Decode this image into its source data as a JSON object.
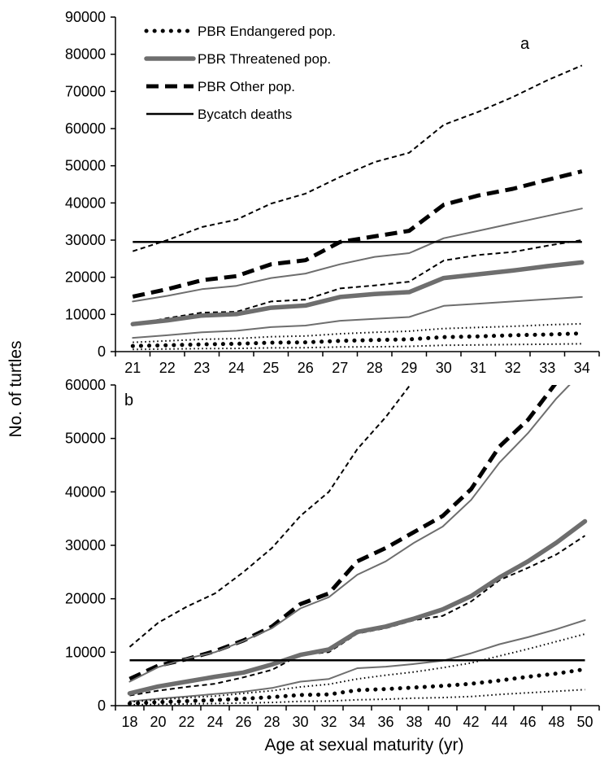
{
  "chart_data": [
    {
      "type": "line",
      "panel_label": "a",
      "x": [
        21,
        22,
        23,
        24,
        25,
        26,
        27,
        28,
        29,
        30,
        31,
        32,
        33,
        34
      ],
      "xlim": [
        21,
        34
      ],
      "ylim": [
        0,
        90000
      ],
      "yticks": [
        0,
        10000,
        20000,
        30000,
        40000,
        50000,
        60000,
        70000,
        80000,
        90000
      ],
      "ytick_labels": [
        "0",
        "10000",
        "20000",
        "30000",
        "40000",
        "50000",
        "60000",
        "70000",
        "80000",
        "90000"
      ],
      "xtick_labels": [
        "21",
        "22",
        "23",
        "24",
        "25",
        "26",
        "27",
        "28",
        "29",
        "30",
        "31",
        "32",
        "33",
        "34"
      ],
      "legend": {
        "placement": "top-left",
        "entries": [
          {
            "label": "PBR Endangered pop.",
            "style": "dotted-thick",
            "color": "#000000"
          },
          {
            "label": "PBR Threatened pop.",
            "style": "solid-thick",
            "color": "#6e6e6e"
          },
          {
            "label": "PBR Other pop.",
            "style": "dashed-thick",
            "color": "#000000"
          },
          {
            "label": "Bycatch deaths",
            "style": "solid",
            "color": "#000000"
          }
        ]
      },
      "series": [
        {
          "group": "PBR Other pop.",
          "role": "upper",
          "style": "dashed-thin",
          "color": "#000000",
          "values": [
            27000,
            30000,
            33500,
            35500,
            39800,
            42500,
            47000,
            51000,
            53500,
            61000,
            64500,
            68500,
            73000,
            77000
          ]
        },
        {
          "group": "PBR Other pop.",
          "role": "mean",
          "style": "dashed-thick",
          "color": "#000000",
          "values": [
            14800,
            16800,
            19200,
            20300,
            23500,
            24600,
            29500,
            31000,
            32500,
            39500,
            42000,
            43800,
            46200,
            48500
          ]
        },
        {
          "group": "PBR Other pop.",
          "role": "lower",
          "style": "dashed-thin",
          "color": "#000000",
          "values": [
            7200,
            9000,
            10500,
            10700,
            13500,
            14000,
            17000,
            17800,
            18800,
            24500,
            26000,
            26800,
            28500,
            30000
          ]
        },
        {
          "group": "PBR Threatened pop.",
          "role": "upper",
          "style": "solid-thin",
          "color": "#6e6e6e",
          "values": [
            13500,
            15000,
            16800,
            17700,
            19800,
            21000,
            23500,
            25500,
            26500,
            30500,
            32500,
            34500,
            36500,
            38500
          ]
        },
        {
          "group": "PBR Threatened pop.",
          "role": "mean",
          "style": "solid-thick",
          "color": "#6e6e6e",
          "values": [
            7400,
            8400,
            9700,
            10100,
            11800,
            12400,
            14700,
            15500,
            16000,
            19800,
            20800,
            21800,
            23000,
            24000
          ]
        },
        {
          "group": "PBR Threatened pop.",
          "role": "lower",
          "style": "solid-thin",
          "color": "#6e6e6e",
          "values": [
            3700,
            4400,
            5200,
            5600,
            6600,
            7000,
            8300,
            8800,
            9300,
            12300,
            12900,
            13500,
            14100,
            14700
          ]
        },
        {
          "group": "PBR Endangered pop.",
          "role": "upper",
          "style": "dotted-thin",
          "color": "#000000",
          "values": [
            2500,
            2900,
            3300,
            3500,
            4000,
            4200,
            4800,
            5200,
            5500,
            6200,
            6500,
            6800,
            7200,
            7500
          ]
        },
        {
          "group": "PBR Endangered pop.",
          "role": "mean",
          "style": "dotted-thick",
          "color": "#000000",
          "values": [
            1500,
            1700,
            1950,
            2100,
            2400,
            2500,
            2900,
            3100,
            3300,
            3900,
            4100,
            4400,
            4600,
            4900
          ]
        },
        {
          "group": "PBR Endangered pop.",
          "role": "lower",
          "style": "dotted-thin",
          "color": "#000000",
          "values": [
            600,
            700,
            800,
            850,
            1000,
            1050,
            1250,
            1300,
            1400,
            1700,
            1800,
            1900,
            2000,
            2100
          ]
        },
        {
          "group": "Bycatch deaths",
          "role": "value",
          "style": "solid",
          "color": "#000000",
          "values": [
            29500,
            29500,
            29500,
            29500,
            29500,
            29500,
            29500,
            29500,
            29500,
            29500,
            29500,
            29500,
            29500,
            29500
          ]
        }
      ]
    },
    {
      "type": "line",
      "panel_label": "b",
      "x": [
        18,
        20,
        22,
        24,
        26,
        28,
        30,
        32,
        34,
        36,
        38,
        40,
        42,
        44,
        46,
        48,
        50
      ],
      "xlim": [
        18,
        50
      ],
      "ylim": [
        0,
        60000
      ],
      "yticks": [
        0,
        10000,
        20000,
        30000,
        40000,
        50000,
        60000
      ],
      "ytick_labels": [
        "0",
        "10000",
        "20000",
        "30000",
        "40000",
        "50000",
        "60000"
      ],
      "xtick_labels": [
        "18",
        "20",
        "22",
        "24",
        "26",
        "28",
        "30",
        "32",
        "34",
        "36",
        "38",
        "40",
        "42",
        "44",
        "46",
        "48",
        "50"
      ],
      "series": [
        {
          "group": "PBR Other pop.",
          "role": "upper",
          "style": "dashed-thin",
          "color": "#000000",
          "values": [
            11000,
            15500,
            18500,
            21000,
            25000,
            29500,
            35500,
            40000,
            48000,
            54000,
            61000,
            null,
            null,
            null,
            null,
            null,
            null
          ]
        },
        {
          "group": "PBR Other pop.",
          "role": "mean",
          "style": "dashed-thick",
          "color": "#000000",
          "values": [
            5000,
            7500,
            8700,
            10200,
            12200,
            14800,
            19000,
            21000,
            27000,
            29500,
            32500,
            35500,
            40500,
            48500,
            53500,
            60500,
            null
          ]
        },
        {
          "group": "PBR Other pop.",
          "role": "lower",
          "style": "dashed-thin",
          "color": "#000000",
          "values": [
            1900,
            2800,
            3500,
            4100,
            5300,
            6700,
            9500,
            10000,
            13500,
            14500,
            16000,
            16800,
            19500,
            23500,
            25800,
            28300,
            31800
          ]
        },
        {
          "group": "PBR Threatened pop.",
          "role": "upper",
          "style": "solid-thin",
          "color": "#6e6e6e",
          "values": [
            4500,
            7200,
            8800,
            10000,
            12100,
            14500,
            18200,
            20300,
            24500,
            27000,
            30500,
            33500,
            38500,
            45500,
            51000,
            57500,
            63000
          ]
        },
        {
          "group": "PBR Threatened pop.",
          "role": "mean",
          "style": "solid-thick",
          "color": "#6e6e6e",
          "values": [
            2300,
            3600,
            4500,
            5400,
            6200,
            7700,
            9500,
            10500,
            13800,
            14800,
            16300,
            18000,
            20500,
            24000,
            27000,
            30500,
            34500
          ]
        },
        {
          "group": "PBR Threatened pop.",
          "role": "lower",
          "style": "solid-thin",
          "color": "#6e6e6e",
          "values": [
            800,
            1300,
            1700,
            2200,
            2600,
            3300,
            4500,
            5000,
            7000,
            7300,
            7800,
            8400,
            9800,
            11500,
            12800,
            14300,
            16000
          ]
        },
        {
          "group": "PBR Endangered pop.",
          "role": "upper",
          "style": "dotted-thin",
          "color": "#000000",
          "values": [
            700,
            1100,
            1500,
            1800,
            2300,
            2800,
            3500,
            4000,
            5000,
            5700,
            6300,
            7100,
            8000,
            9300,
            10600,
            12000,
            13400
          ]
        },
        {
          "group": "PBR Endangered pop.",
          "role": "mean",
          "style": "dotted-thick",
          "color": "#000000",
          "values": [
            400,
            650,
            850,
            1050,
            1300,
            1600,
            2000,
            2100,
            2900,
            3100,
            3400,
            3700,
            4100,
            4700,
            5400,
            6000,
            6800
          ]
        },
        {
          "group": "PBR Endangered pop.",
          "role": "lower",
          "style": "dotted-thin",
          "color": "#000000",
          "values": [
            150,
            250,
            320,
            400,
            500,
            600,
            800,
            850,
            1100,
            1200,
            1400,
            1500,
            1700,
            2100,
            2400,
            2700,
            3000
          ]
        },
        {
          "group": "Bycatch deaths",
          "role": "value",
          "style": "solid",
          "color": "#000000",
          "values": [
            8500,
            8500,
            8500,
            8500,
            8500,
            8500,
            8500,
            8500,
            8500,
            8500,
            8500,
            8500,
            8500,
            8500,
            8500,
            8500,
            8500
          ]
        }
      ]
    }
  ],
  "shared_axes": {
    "ylabel": "No. of turtles",
    "xlabel": "Age at sexual maturity (yr)"
  }
}
